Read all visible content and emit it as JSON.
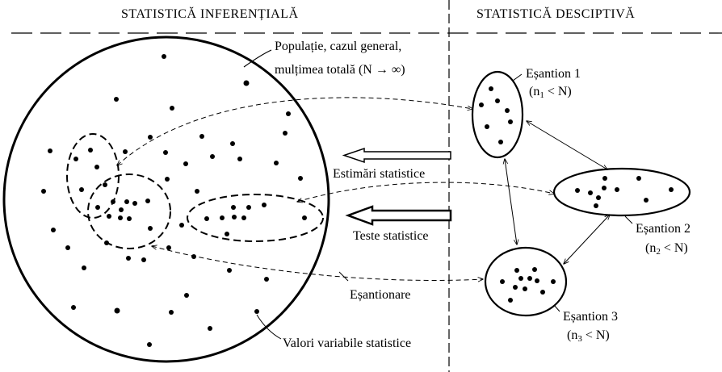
{
  "headings": {
    "left": "STATISTICĂ INFERENȚIALĂ",
    "right": "STATISTICĂ DESCIPTIVĂ"
  },
  "population_label": {
    "line1": "Populație, cazul general,",
    "line2": "mulțimea totală (N → ∞)"
  },
  "arrows": {
    "estimates": "Estimări statistice",
    "tests": "Teste statistice"
  },
  "sampling_label": "Eșantionare",
  "values_label": "Valori variabile statistice",
  "samples": [
    {
      "title": "Eșantion 1",
      "n_open": "(n",
      "n_sub": "1",
      "n_close": " < N)"
    },
    {
      "title": "Eșantion 2",
      "n_open": "(n",
      "n_sub": "2",
      "n_close": " < N)"
    },
    {
      "title": "Eșantion 3",
      "n_open": "(n",
      "n_sub": "3",
      "n_close": " < N)"
    }
  ]
}
